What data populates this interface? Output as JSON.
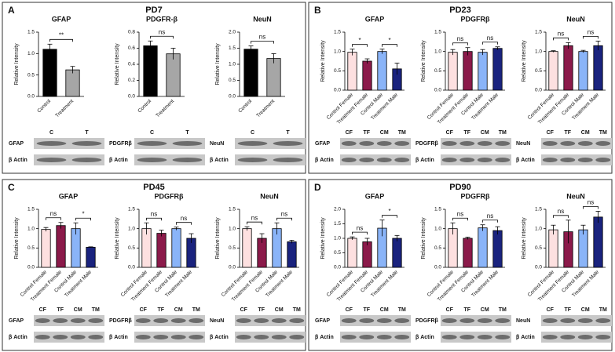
{
  "panels": [
    {
      "letter": "A",
      "title": "PD7"
    },
    {
      "letter": "B",
      "title": "PD23"
    },
    {
      "letter": "C",
      "title": "PD45"
    },
    {
      "letter": "D",
      "title": "PD90"
    }
  ],
  "chart_data": [
    {
      "type": "bar",
      "title": "GFAP",
      "ylabel": "Relative Intensity",
      "categories": [
        "Control",
        "Treatment"
      ],
      "values": [
        1.1,
        0.62
      ],
      "errors": [
        0.12,
        0.08
      ],
      "colors": [
        "#000000",
        "#a6a6a6"
      ],
      "ylim": [
        0,
        1.5
      ],
      "yticks": [
        {
          "value": 0,
          "label": "0.0"
        },
        {
          "value": 0.5,
          "label": "0.5"
        },
        {
          "value": 1,
          "label": "1.0"
        },
        {
          "value": 1.5,
          "label": "1.5"
        }
      ],
      "annotations": [
        "**"
      ],
      "blot": {
        "rows": [
          "GFAP",
          "β Actin"
        ],
        "lanes": [
          "C",
          "T"
        ]
      }
    },
    {
      "type": "bar",
      "title": "PDGFR-β",
      "ylabel": "Relative Intensity",
      "categories": [
        "Control",
        "Treatment"
      ],
      "values": [
        0.63,
        0.53
      ],
      "errors": [
        0.06,
        0.07
      ],
      "colors": [
        "#000000",
        "#a6a6a6"
      ],
      "ylim": [
        0,
        0.8
      ],
      "yticks": [
        {
          "value": 0,
          "label": "0.0"
        },
        {
          "value": 0.2,
          "label": "0.2"
        },
        {
          "value": 0.4,
          "label": "0.4"
        },
        {
          "value": 0.6,
          "label": "0.6"
        },
        {
          "value": 0.8,
          "label": "0.8"
        }
      ],
      "annotations": [
        "ns"
      ],
      "blot": {
        "rows": [
          "PDGFRβ",
          "β Actin"
        ],
        "lanes": [
          "C",
          "T"
        ]
      }
    },
    {
      "type": "bar",
      "title": "NeuN",
      "ylabel": "Relative Intensity",
      "categories": [
        "Control",
        "Treatment"
      ],
      "values": [
        1.47,
        1.18
      ],
      "errors": [
        0.1,
        0.15
      ],
      "colors": [
        "#000000",
        "#a6a6a6"
      ],
      "ylim": [
        0,
        2
      ],
      "yticks": [
        {
          "value": 0,
          "label": "0.0"
        },
        {
          "value": 0.5,
          "label": "0.5"
        },
        {
          "value": 1,
          "label": "1.0"
        },
        {
          "value": 1.5,
          "label": "1.5"
        },
        {
          "value": 2,
          "label": "2.0"
        }
      ],
      "annotations": [
        "ns"
      ],
      "blot": {
        "rows": [
          "NeuN",
          "β Actin"
        ],
        "lanes": [
          "C",
          "T"
        ]
      }
    },
    {
      "type": "bar",
      "title": "GFAP",
      "ylabel": "Relative Intensity",
      "categories": [
        "Control Female",
        "Treatment Female",
        "Control Male",
        "Treatment Male"
      ],
      "values": [
        0.98,
        0.75,
        1.0,
        0.55
      ],
      "errors": [
        0.08,
        0.06,
        0.06,
        0.15
      ],
      "colors": [
        "#fde0e0",
        "#8b1a4a",
        "#8ab4f8",
        "#1a237e"
      ],
      "ylim": [
        0,
        1.5
      ],
      "yticks": [
        {
          "value": 0,
          "label": "0.0"
        },
        {
          "value": 0.5,
          "label": "0.5"
        },
        {
          "value": 1,
          "label": "1.0"
        },
        {
          "value": 1.5,
          "label": "1.5"
        }
      ],
      "annotations": [
        "*",
        "*"
      ],
      "blot": {
        "rows": [
          "GFAP",
          "β Actin"
        ],
        "lanes": [
          "CF",
          "TF",
          "CM",
          "TM"
        ]
      }
    },
    {
      "type": "bar",
      "title": "PDGFRβ",
      "ylabel": "Relative Intensity",
      "categories": [
        "Control Female",
        "Treatment Female",
        "Control Male",
        "Treatment Male"
      ],
      "values": [
        0.98,
        1.0,
        0.98,
        1.08
      ],
      "errors": [
        0.07,
        0.1,
        0.07,
        0.04
      ],
      "colors": [
        "#fde0e0",
        "#8b1a4a",
        "#8ab4f8",
        "#1a237e"
      ],
      "ylim": [
        0,
        1.5
      ],
      "yticks": [
        {
          "value": 0,
          "label": "0.0"
        },
        {
          "value": 0.5,
          "label": "0.5"
        },
        {
          "value": 1,
          "label": "1.0"
        },
        {
          "value": 1.5,
          "label": "1.5"
        }
      ],
      "annotations": [
        "ns",
        "ns"
      ],
      "blot": {
        "rows": [
          "PDGFRβ",
          "β Actin"
        ],
        "lanes": [
          "CF",
          "TF",
          "CM",
          "TM"
        ]
      }
    },
    {
      "type": "bar",
      "title": "NeuN",
      "ylabel": "Relative Intensity",
      "categories": [
        "Control Female",
        "Treatment Female",
        "Control Male",
        "Treatment Male"
      ],
      "values": [
        1.0,
        1.15,
        1.0,
        1.15
      ],
      "errors": [
        0.02,
        0.08,
        0.03,
        0.12
      ],
      "colors": [
        "#fde0e0",
        "#8b1a4a",
        "#8ab4f8",
        "#1a237e"
      ],
      "ylim": [
        0,
        1.5
      ],
      "yticks": [
        {
          "value": 0,
          "label": "0.0"
        },
        {
          "value": 0.5,
          "label": "0.5"
        },
        {
          "value": 1,
          "label": "1.0"
        },
        {
          "value": 1.5,
          "label": "1.5"
        }
      ],
      "annotations": [
        "ns",
        "ns"
      ],
      "blot": {
        "rows": [
          "NeuN",
          "β Actin"
        ],
        "lanes": [
          "CF",
          "TF",
          "CM",
          "TM"
        ]
      }
    },
    {
      "type": "bar",
      "title": "GFAP",
      "ylabel": "Relative Intensity",
      "categories": [
        "Control Female",
        "Treatment Female",
        "Control Male",
        "Treatment Male"
      ],
      "values": [
        0.98,
        1.08,
        1.0,
        0.52
      ],
      "errors": [
        0.05,
        0.08,
        0.15,
        0.01
      ],
      "colors": [
        "#fde0e0",
        "#8b1a4a",
        "#8ab4f8",
        "#1a237e"
      ],
      "ylim": [
        0,
        1.5
      ],
      "yticks": [
        {
          "value": 0,
          "label": "0.0"
        },
        {
          "value": 0.5,
          "label": "0.5"
        },
        {
          "value": 1,
          "label": "1.0"
        },
        {
          "value": 1.5,
          "label": "1.5"
        }
      ],
      "annotations": [
        "ns",
        "*"
      ],
      "blot": {
        "rows": [
          "GFAP",
          "β Actin"
        ],
        "lanes": [
          "CF",
          "TF",
          "CM",
          "TM"
        ]
      }
    },
    {
      "type": "bar",
      "title": "PDGFRβ",
      "ylabel": "Relative Intensity",
      "categories": [
        "Control Female",
        "Treatment Female",
        "Control Male",
        "Treatment Male"
      ],
      "values": [
        1.0,
        0.88,
        1.0,
        0.75
      ],
      "errors": [
        0.15,
        0.08,
        0.04,
        0.12
      ],
      "colors": [
        "#fde0e0",
        "#8b1a4a",
        "#8ab4f8",
        "#1a237e"
      ],
      "ylim": [
        0,
        1.5
      ],
      "yticks": [
        {
          "value": 0,
          "label": "0.0"
        },
        {
          "value": 0.5,
          "label": "0.5"
        },
        {
          "value": 1,
          "label": "1.0"
        },
        {
          "value": 1.5,
          "label": "1.5"
        }
      ],
      "annotations": [
        "ns",
        "ns"
      ],
      "blot": {
        "rows": [
          "PDGFRβ",
          "β Actin"
        ],
        "lanes": [
          "CF",
          "TF",
          "CM",
          "TM"
        ]
      }
    },
    {
      "type": "bar",
      "title": "NeuN",
      "ylabel": "Relative Intensity",
      "categories": [
        "Control Female",
        "Treatment Female",
        "Control Male",
        "Treatment Male"
      ],
      "values": [
        1.0,
        0.75,
        1.0,
        0.66
      ],
      "errors": [
        0.05,
        0.12,
        0.15,
        0.04
      ],
      "colors": [
        "#fde0e0",
        "#8b1a4a",
        "#8ab4f8",
        "#1a237e"
      ],
      "ylim": [
        0,
        1.5
      ],
      "yticks": [
        {
          "value": 0,
          "label": "0.0"
        },
        {
          "value": 0.5,
          "label": "0.5"
        },
        {
          "value": 1,
          "label": "1.0"
        },
        {
          "value": 1.5,
          "label": "1.5"
        }
      ],
      "annotations": [
        "ns",
        "ns"
      ],
      "blot": {
        "rows": [
          "NeuN",
          "β Actin"
        ],
        "lanes": [
          "CF",
          "TF",
          "CM",
          "TM"
        ]
      }
    },
    {
      "type": "bar",
      "title": "GFAP",
      "ylabel": "Relative Intensity",
      "categories": [
        "Control Female",
        "Treatment Female",
        "Control Male",
        "Treatment Male"
      ],
      "values": [
        1.0,
        0.88,
        1.35,
        1.0
      ],
      "errors": [
        0.05,
        0.12,
        0.28,
        0.1
      ],
      "colors": [
        "#fde0e0",
        "#8b1a4a",
        "#8ab4f8",
        "#1a237e"
      ],
      "ylim": [
        0,
        2
      ],
      "yticks": [
        {
          "value": 0,
          "label": "0.0"
        },
        {
          "value": 0.5,
          "label": "0.5"
        },
        {
          "value": 1,
          "label": "1.0"
        },
        {
          "value": 1.5,
          "label": "1.5"
        },
        {
          "value": 2,
          "label": "2.0"
        }
      ],
      "annotations": [
        "ns",
        "*"
      ],
      "blot": {
        "rows": [
          "GFAP",
          "β Actin"
        ],
        "lanes": [
          "CF",
          "TF",
          "CM",
          "TM"
        ]
      }
    },
    {
      "type": "bar",
      "title": "PDGFRβ",
      "ylabel": "Relative Intensity",
      "categories": [
        "Control Female",
        "Treatment Female",
        "Control Male",
        "Treatment Male"
      ],
      "values": [
        1.0,
        0.75,
        1.02,
        0.95
      ],
      "errors": [
        0.15,
        0.03,
        0.08,
        0.1
      ],
      "colors": [
        "#fde0e0",
        "#8b1a4a",
        "#8ab4f8",
        "#1a237e"
      ],
      "ylim": [
        0,
        1.5
      ],
      "yticks": [
        {
          "value": 0,
          "label": "0.0"
        },
        {
          "value": 0.5,
          "label": "0.5"
        },
        {
          "value": 1,
          "label": "1.0"
        },
        {
          "value": 1.5,
          "label": "1.5"
        }
      ],
      "annotations": [
        "ns",
        "ns"
      ],
      "blot": {
        "rows": [
          "PDGFRβ",
          "β Actin"
        ],
        "lanes": [
          "CF",
          "TF",
          "CM",
          "TM"
        ]
      }
    },
    {
      "type": "bar",
      "title": "NeuN",
      "ylabel": "Relative Intensity",
      "categories": [
        "Control Female",
        "Treatment Female",
        "Control Male",
        "Treatment Male"
      ],
      "values": [
        0.97,
        0.92,
        0.97,
        1.3
      ],
      "errors": [
        0.12,
        0.3,
        0.12,
        0.15
      ],
      "colors": [
        "#fde0e0",
        "#8b1a4a",
        "#8ab4f8",
        "#1a237e"
      ],
      "ylim": [
        0,
        1.5
      ],
      "yticks": [
        {
          "value": 0,
          "label": "0.0"
        },
        {
          "value": 0.5,
          "label": "0.5"
        },
        {
          "value": 1,
          "label": "1.0"
        },
        {
          "value": 1.5,
          "label": "1.5"
        }
      ],
      "annotations": [
        "ns",
        "ns"
      ],
      "blot": {
        "rows": [
          "NeuN",
          "β Actin"
        ],
        "lanes": [
          "CF",
          "TF",
          "CM",
          "TM"
        ]
      }
    }
  ]
}
